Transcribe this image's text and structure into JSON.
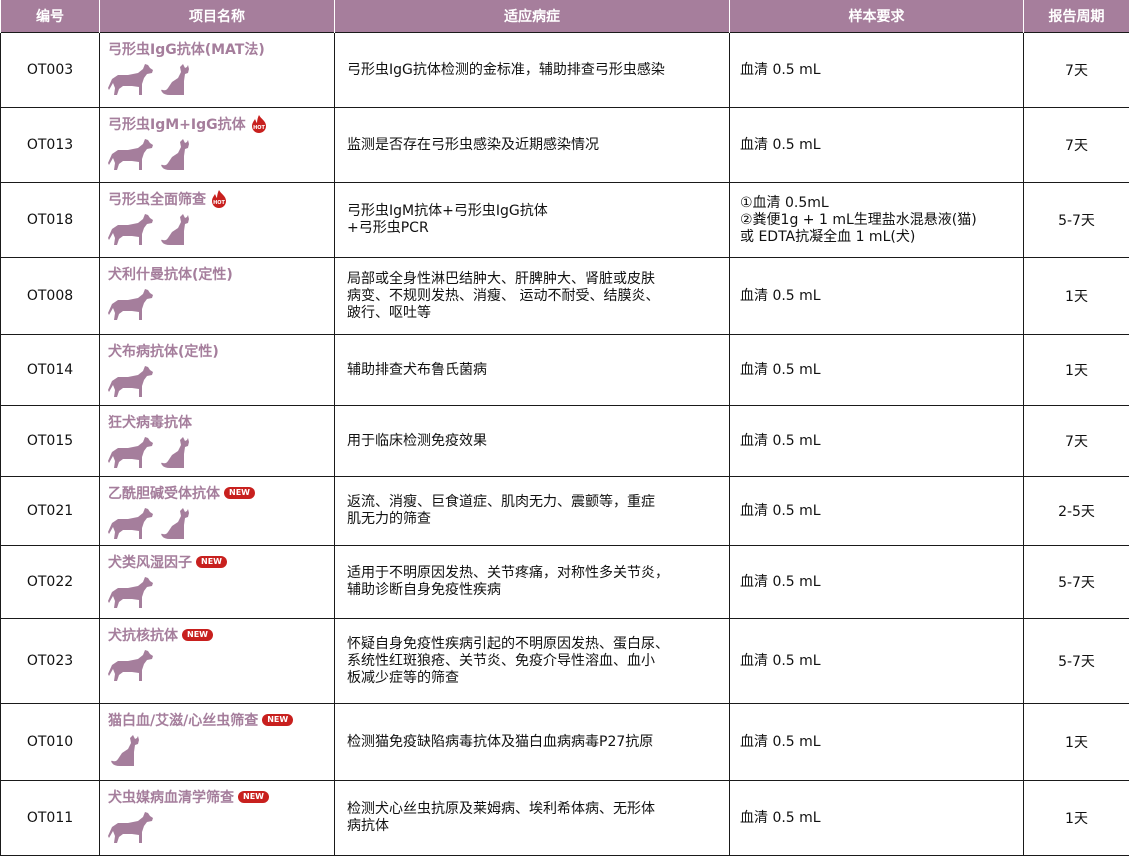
{
  "headers": [
    "编号",
    "项目名称",
    "适应病症",
    "样本要求",
    "报告周期"
  ],
  "badges": {
    "hot": "HOT",
    "new": "NEW"
  },
  "rows": [
    {
      "code": "OT003",
      "name": "弓形虫IgG抗体(MAT法)",
      "badge": "",
      "species": [
        "dog",
        "cat"
      ],
      "indication": [
        "弓形虫IgG抗体检测的金标准，辅助排查弓形虫感染"
      ],
      "sample": [
        "血清 0.5 mL"
      ],
      "period": "7天"
    },
    {
      "code": "OT013",
      "name": "弓形虫IgM+IgG抗体",
      "badge": "hot",
      "species": [
        "dog",
        "cat"
      ],
      "indication": [
        "监测是否存在弓形虫感染及近期感染情况"
      ],
      "sample": [
        "血清 0.5 mL"
      ],
      "period": "7天"
    },
    {
      "code": "OT018",
      "name": "弓形虫全面筛查",
      "badge": "hot",
      "species": [
        "dog",
        "cat"
      ],
      "indication": [
        "弓形虫IgM抗体+弓形虫IgG抗体",
        "+弓形虫PCR"
      ],
      "sample": [
        "①血清 0.5mL",
        "②粪便1g + 1 mL生理盐水混悬液(猫)",
        "或 EDTA抗凝全血 1 mL(犬)"
      ],
      "period": "5-7天"
    },
    {
      "code": "OT008",
      "name": "犬利什曼抗体(定性)",
      "badge": "",
      "species": [
        "dog"
      ],
      "indication": [
        "局部或全身性淋巴结肿大、肝脾肿大、肾脏或皮肤",
        "病变、不规则发热、消瘦、 运动不耐受、结膜炎、",
        "跛行、呕吐等"
      ],
      "sample": [
        "血清 0.5 mL"
      ],
      "period": "1天"
    },
    {
      "code": "OT014",
      "name": "犬布病抗体(定性)",
      "badge": "",
      "species": [
        "dog"
      ],
      "indication": [
        "辅助排查犬布鲁氏菌病"
      ],
      "sample": [
        "血清 0.5 mL"
      ],
      "period": "1天"
    },
    {
      "code": "OT015",
      "name": "狂犬病毒抗体",
      "badge": "",
      "species": [
        "dog",
        "cat"
      ],
      "indication": [
        "用于临床检测免疫效果"
      ],
      "sample": [
        "血清 0.5 mL"
      ],
      "period": "7天"
    },
    {
      "code": "OT021",
      "name": "乙酰胆碱受体抗体",
      "badge": "new",
      "species": [
        "dog",
        "cat"
      ],
      "indication": [
        "返流、消瘦、巨食道症、肌肉无力、震颤等，重症",
        "肌无力的筛查"
      ],
      "sample": [
        "血清 0.5 mL"
      ],
      "period": "2-5天"
    },
    {
      "code": "OT022",
      "name": "犬类风湿因子",
      "badge": "new",
      "species": [
        "dog"
      ],
      "indication": [
        "适用于不明原因发热、关节疼痛，对称性多关节炎，",
        "辅助诊断自身免疫性疾病"
      ],
      "sample": [
        "血清 0.5 mL"
      ],
      "period": "5-7天"
    },
    {
      "code": "OT023",
      "name": "犬抗核抗体",
      "badge": "new",
      "species": [
        "dog"
      ],
      "indication": [
        "怀疑自身免疫性疾病引起的不明原因发热、蛋白尿、",
        "系统性红斑狼疮、关节炎、免疫介导性溶血、血小",
        "板减少症等的筛查"
      ],
      "sample": [
        "血清 0.5 mL"
      ],
      "period": "5-7天"
    },
    {
      "code": "OT010",
      "name": "猫白血/艾滋/心丝虫筛查",
      "badge": "new",
      "species": [
        "cat"
      ],
      "indication": [
        "检测猫免疫缺陷病毒抗体及猫白血病病毒P27抗原"
      ],
      "sample": [
        "血清 0.5 mL"
      ],
      "period": "1天"
    },
    {
      "code": "OT011",
      "name": "犬虫媒病血清学筛查",
      "badge": "new",
      "species": [
        "dog"
      ],
      "indication": [
        "检测犬心丝虫抗原及莱姆病、埃利希体病、无形体",
        "病抗体"
      ],
      "sample": [
        "血清 0.5 mL"
      ],
      "period": "1天"
    }
  ]
}
